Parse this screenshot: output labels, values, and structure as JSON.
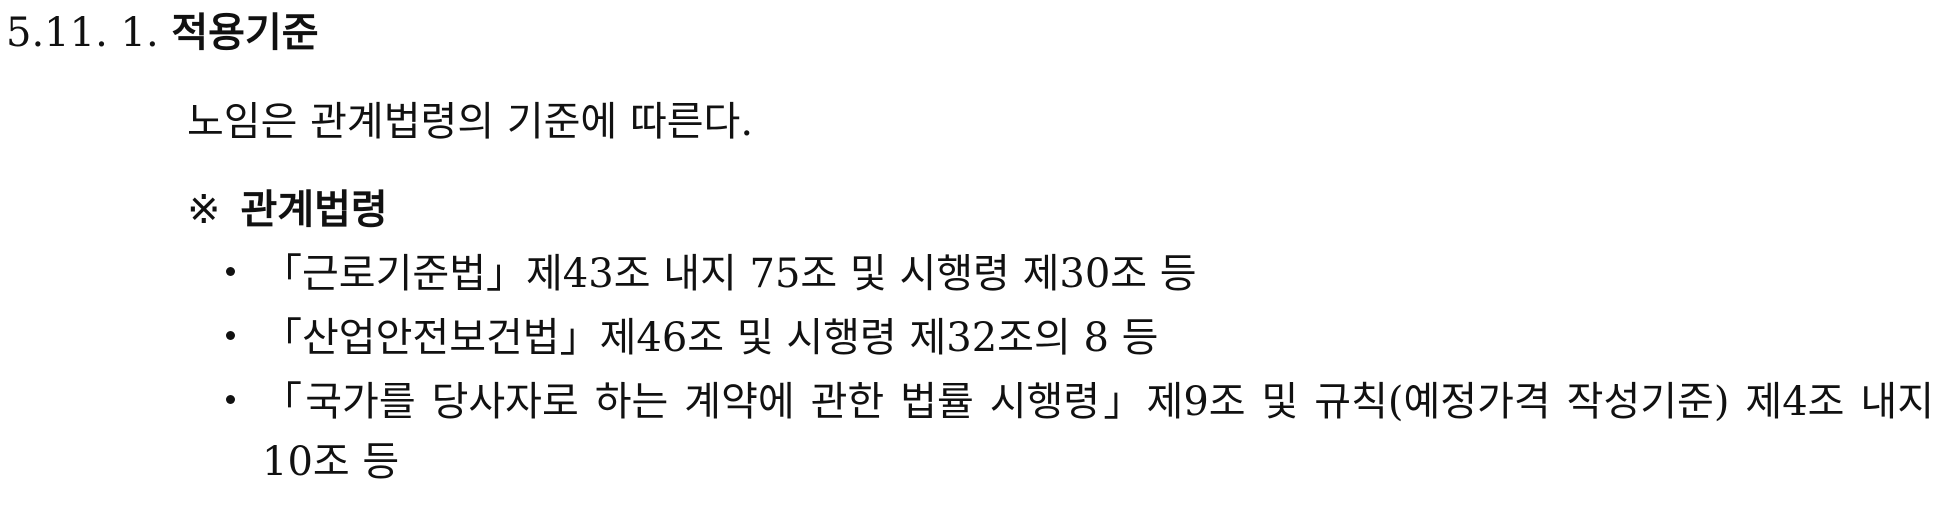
{
  "section": {
    "number": "5.11. 1.",
    "title": "적용기준"
  },
  "paragraph": "노임은 관계법령의 기준에 따른다.",
  "note": {
    "mark": "※",
    "label": "관계법령"
  },
  "bullets": [
    "「근로기준법」제43조 내지 75조 및 시행령 제30조 등",
    "「산업안전보건법」제46조 및 시행령 제32조의 8 등",
    "「국가를 당사자로 하는 계약에 관한 법률 시행령」제9조 및 규칙(예정가격 작성기준) 제4조 내지10조 등"
  ]
}
